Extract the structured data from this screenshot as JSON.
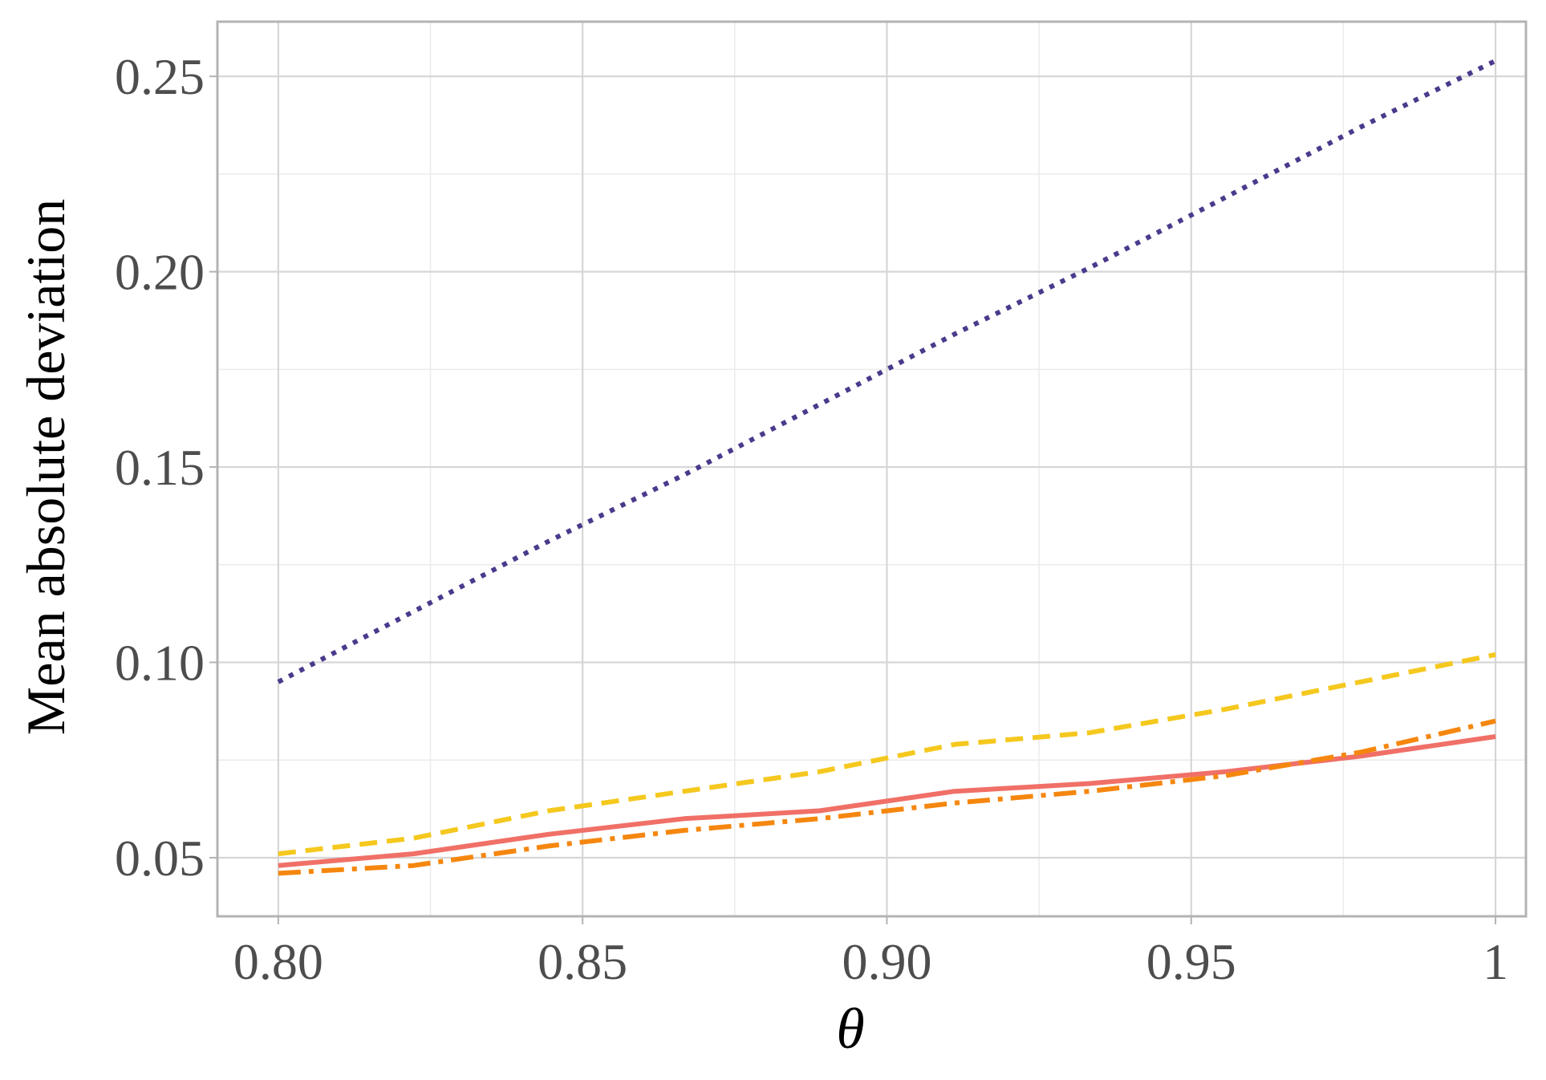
{
  "chart_data": {
    "type": "line",
    "xlabel": "θ",
    "ylabel": "Mean absolute deviation",
    "xlim": [
      0.79,
      1.005
    ],
    "ylim": [
      0.035,
      0.264
    ],
    "x_ticks": [
      0.8,
      0.85,
      0.9,
      0.95,
      1.0
    ],
    "x_tick_labels": [
      "0.80",
      "0.85",
      "0.90",
      "0.95",
      "1"
    ],
    "y_ticks": [
      0.05,
      0.1,
      0.15,
      0.2,
      0.25
    ],
    "y_tick_labels": [
      "0.05",
      "0.10",
      "0.15",
      "0.20",
      "0.25"
    ],
    "grid": true,
    "legend": "none",
    "series": [
      {
        "color": "#4b3a8c",
        "linestyle": "dotted",
        "x": [
          0.8,
          0.8222,
          0.8444,
          0.8667,
          0.8889,
          0.9111,
          0.9333,
          0.9556,
          0.9778,
          1.0
        ],
        "values": [
          0.095,
          0.113,
          0.131,
          0.148,
          0.166,
          0.184,
          0.201,
          0.219,
          0.237,
          0.254
        ]
      },
      {
        "color": "#f5c81e",
        "linestyle": "dashed",
        "x": [
          0.8,
          0.8222,
          0.8444,
          0.8667,
          0.8889,
          0.9111,
          0.9333,
          0.9556,
          0.9778,
          1.0
        ],
        "values": [
          0.051,
          0.055,
          0.062,
          0.067,
          0.072,
          0.079,
          0.082,
          0.088,
          0.095,
          0.102
        ]
      },
      {
        "color": "#f07067",
        "linestyle": "solid",
        "x": [
          0.8,
          0.8222,
          0.8444,
          0.8667,
          0.8889,
          0.9111,
          0.9333,
          0.9556,
          0.9778,
          1.0
        ],
        "values": [
          0.048,
          0.051,
          0.056,
          0.06,
          0.062,
          0.067,
          0.069,
          0.072,
          0.076,
          0.081
        ]
      },
      {
        "color": "#f5870f",
        "linestyle": "dashdot",
        "x": [
          0.8,
          0.8222,
          0.8444,
          0.8667,
          0.8889,
          0.9111,
          0.9333,
          0.9556,
          0.9778,
          1.0
        ],
        "values": [
          0.046,
          0.048,
          0.053,
          0.057,
          0.06,
          0.064,
          0.067,
          0.071,
          0.077,
          0.085
        ]
      }
    ]
  }
}
